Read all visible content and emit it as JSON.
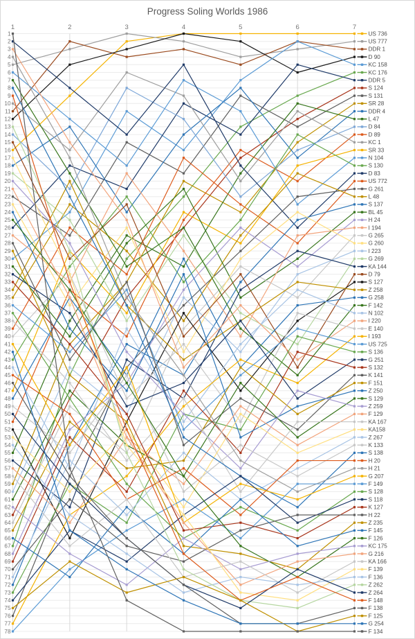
{
  "title": "Progress Soling Worlds 1986",
  "chart_data": {
    "type": "line",
    "variant": "bump-rank-chart",
    "title": "Progress Soling Worlds 1986",
    "x": {
      "ticks": [
        "1",
        "2",
        "3",
        "4",
        "5",
        "6",
        "7"
      ],
      "position": "top"
    },
    "y": {
      "min": 1,
      "max": 78,
      "step": 1,
      "direction": "down",
      "side": "left"
    },
    "grid": {
      "horizontal": true,
      "vertical": true
    },
    "legend_position": "right",
    "colors": {
      "grid_h": "#ececec",
      "grid_v": "#d9d9d9",
      "axis_text": "#757575",
      "legend_text": "#4d4d4d",
      "title_text": "#595959"
    },
    "series": [
      {
        "label": "US 736",
        "color": "#f5b301",
        "ranks": [
          16,
          9,
          2,
          1,
          1,
          1,
          1
        ]
      },
      {
        "label": "US 777",
        "color": "#9e9e9e",
        "ranks": [
          5,
          3,
          1,
          2,
          4,
          3,
          2
        ]
      },
      {
        "label": "DDR 1",
        "color": "#9a4a1e",
        "ranks": [
          11,
          2,
          4,
          3,
          5,
          2,
          3
        ]
      },
      {
        "label": "D 90",
        "color": "#1a1a1a",
        "ranks": [
          12,
          5,
          3,
          1,
          2,
          6,
          4
        ]
      },
      {
        "label": "KC 158",
        "color": "#5b9bd5",
        "ranks": [
          30,
          24,
          11,
          16,
          7,
          2,
          5
        ]
      },
      {
        "label": "KC 176",
        "color": "#68a84e",
        "ranks": [
          67,
          45,
          30,
          22,
          13,
          9,
          6
        ]
      },
      {
        "label": "DDR 5",
        "color": "#1f3a68",
        "ranks": [
          26,
          18,
          21,
          10,
          14,
          5,
          7
        ]
      },
      {
        "label": "S 124",
        "color": "#a8341a",
        "ranks": [
          63,
          48,
          35,
          26,
          17,
          12,
          8
        ]
      },
      {
        "label": "S 131",
        "color": "#5f5f5f",
        "ranks": [
          22,
          27,
          15,
          19,
          9,
          13,
          9
        ]
      },
      {
        "label": "SR 28",
        "color": "#bf9000",
        "ranks": [
          59,
          41,
          33,
          20,
          24,
          15,
          10
        ]
      },
      {
        "label": "DDR 4",
        "color": "#2e75b6",
        "ranks": [
          18,
          13,
          24,
          14,
          8,
          17,
          11
        ]
      },
      {
        "label": "L 47",
        "color": "#38761d",
        "ranks": [
          55,
          38,
          27,
          31,
          19,
          10,
          12
        ]
      },
      {
        "label": "D 84",
        "color": "#7da7d8",
        "ranks": [
          14,
          21,
          8,
          12,
          22,
          16,
          13
        ]
      },
      {
        "label": "D 89",
        "color": "#dd5b1d",
        "ranks": [
          51,
          34,
          40,
          25,
          16,
          20,
          14
        ]
      },
      {
        "label": "KC 1",
        "color": "#9e9e9e",
        "ranks": [
          10,
          16,
          6,
          9,
          20,
          11,
          15
        ]
      },
      {
        "label": "SR 33",
        "color": "#f5b301",
        "ranks": [
          47,
          29,
          37,
          24,
          28,
          18,
          16
        ]
      },
      {
        "label": "N 104",
        "color": "#5b9bd5",
        "ranks": [
          6,
          12,
          18,
          7,
          11,
          23,
          17
        ]
      },
      {
        "label": "S 130",
        "color": "#68a84e",
        "ranks": [
          43,
          31,
          22,
          33,
          25,
          14,
          18
        ]
      },
      {
        "label": "D 83",
        "color": "#1f3a68",
        "ranks": [
          2,
          8,
          14,
          5,
          18,
          26,
          19
        ]
      },
      {
        "label": "US 772",
        "color": "#dd5b1d",
        "ranks": [
          39,
          26,
          32,
          17,
          23,
          28,
          20
        ]
      },
      {
        "label": "G 261",
        "color": "#5f5f5f",
        "ranks": [
          76,
          58,
          44,
          36,
          29,
          22,
          21
        ]
      },
      {
        "label": "L 48",
        "color": "#bf9000",
        "ranks": [
          35,
          23,
          29,
          38,
          27,
          19,
          22
        ]
      },
      {
        "label": "S 137",
        "color": "#2e75b6",
        "ranks": [
          72,
          54,
          41,
          45,
          33,
          25,
          23
        ]
      },
      {
        "label": "BL 45",
        "color": "#38761d",
        "ranks": [
          31,
          40,
          28,
          21,
          35,
          30,
          24
        ]
      },
      {
        "label": "H 24",
        "color": "#a79cd2",
        "ranks": [
          68,
          52,
          46,
          34,
          26,
          31,
          25
        ]
      },
      {
        "label": "I 194",
        "color": "#f2a47c",
        "ranks": [
          27,
          33,
          19,
          29,
          40,
          27,
          26
        ]
      },
      {
        "label": "G 265",
        "color": "#c7c7c7",
        "ranks": [
          64,
          49,
          55,
          39,
          31,
          35,
          27
        ]
      },
      {
        "label": "G 260",
        "color": "#ffdf80",
        "ranks": [
          23,
          36,
          26,
          42,
          30,
          24,
          28
        ]
      },
      {
        "label": "I 223",
        "color": "#a8c4e5",
        "ranks": [
          60,
          44,
          50,
          35,
          42,
          32,
          29
        ]
      },
      {
        "label": "G 269",
        "color": "#b5d6a0",
        "ranks": [
          19,
          25,
          38,
          27,
          37,
          41,
          30
        ]
      },
      {
        "label": "KA 144",
        "color": "#1f3a68",
        "ranks": [
          56,
          62,
          43,
          48,
          34,
          29,
          31
        ]
      },
      {
        "label": "D 79",
        "color": "#9a4a1e",
        "ranks": [
          15,
          30,
          23,
          40,
          32,
          44,
          32
        ]
      },
      {
        "label": "S 127",
        "color": "#1a1a1a",
        "ranks": [
          52,
          66,
          51,
          37,
          47,
          38,
          33
        ]
      },
      {
        "label": "Z 258",
        "color": "#bf9000",
        "ranks": [
          34,
          20,
          36,
          43,
          38,
          33,
          34
        ]
      },
      {
        "label": "G 258",
        "color": "#2e75b6",
        "ranks": [
          48,
          35,
          45,
          30,
          44,
          36,
          35
        ]
      },
      {
        "label": "F 142",
        "color": "#38761d",
        "ranks": [
          7,
          19,
          31,
          26,
          39,
          45,
          36
        ]
      },
      {
        "label": "N 102",
        "color": "#a8c4e5",
        "ranks": [
          44,
          57,
          39,
          51,
          41,
          34,
          37
        ]
      },
      {
        "label": "I 220",
        "color": "#f2a47c",
        "ranks": [
          3,
          15,
          25,
          44,
          36,
          43,
          38
        ]
      },
      {
        "label": "E 140",
        "color": "#c7c7c7",
        "ranks": [
          40,
          32,
          48,
          41,
          51,
          37,
          39
        ]
      },
      {
        "label": "I 193",
        "color": "#f5b301",
        "ranks": [
          77,
          63,
          58,
          49,
          43,
          46,
          40
        ]
      },
      {
        "label": "US 725",
        "color": "#5b9bd5",
        "ranks": [
          36,
          42,
          34,
          52,
          45,
          39,
          41
        ]
      },
      {
        "label": "S 136",
        "color": "#68a84e",
        "ranks": [
          73,
          59,
          64,
          50,
          52,
          40,
          42
        ]
      },
      {
        "label": "G 251",
        "color": "#1f3a68",
        "ranks": [
          32,
          37,
          49,
          46,
          38,
          48,
          43
        ]
      },
      {
        "label": "S 132",
        "color": "#a8341a",
        "ranks": [
          69,
          53,
          60,
          47,
          55,
          42,
          44
        ]
      },
      {
        "label": "K 141",
        "color": "#5f5f5f",
        "ranks": [
          28,
          43,
          33,
          54,
          48,
          52,
          45
        ]
      },
      {
        "label": "F 151",
        "color": "#bf9000",
        "ranks": [
          65,
          51,
          57,
          56,
          44,
          50,
          46
        ]
      },
      {
        "label": "Z 250",
        "color": "#2e75b6",
        "ranks": [
          24,
          39,
          47,
          32,
          53,
          49,
          47
        ]
      },
      {
        "label": "S 129",
        "color": "#38761d",
        "ranks": [
          61,
          47,
          54,
          58,
          46,
          53,
          48
        ]
      },
      {
        "label": "Z 259",
        "color": "#a79cd2",
        "ranks": [
          20,
          28,
          42,
          50,
          57,
          47,
          49
        ]
      },
      {
        "label": "F 129",
        "color": "#f2a47c",
        "ranks": [
          57,
          64,
          53,
          59,
          49,
          54,
          50
        ]
      },
      {
        "label": "KA 167",
        "color": "#c7c7c7",
        "ranks": [
          38,
          46,
          56,
          48,
          60,
          51,
          51
        ]
      },
      {
        "label": "KA158",
        "color": "#ffdf80",
        "ranks": [
          53,
          60,
          52,
          62,
          50,
          55,
          52
        ]
      },
      {
        "label": "Z 267",
        "color": "#a8c4e5",
        "ranks": [
          71,
          56,
          63,
          55,
          61,
          57,
          53
        ]
      },
      {
        "label": "K 133",
        "color": "#c7c7c7",
        "ranks": [
          49,
          55,
          45,
          60,
          54,
          58,
          54
        ]
      },
      {
        "label": "S 138",
        "color": "#2e75b6",
        "ranks": [
          8,
          22,
          36,
          53,
          58,
          62,
          55
        ]
      },
      {
        "label": "H 20",
        "color": "#dd5b1d",
        "ranks": [
          45,
          50,
          61,
          57,
          63,
          56,
          56
        ]
      },
      {
        "label": "H 21",
        "color": "#9e9e9e",
        "ranks": [
          4,
          17,
          35,
          45,
          56,
          60,
          57
        ]
      },
      {
        "label": "G 207",
        "color": "#f5b301",
        "ranks": [
          41,
          54,
          44,
          64,
          59,
          61,
          58
        ]
      },
      {
        "label": "F 149",
        "color": "#5b9bd5",
        "ranks": [
          78,
          70,
          65,
          61,
          66,
          59,
          59
        ]
      },
      {
        "label": "S 128",
        "color": "#68a84e",
        "ranks": [
          37,
          48,
          59,
          66,
          62,
          65,
          60
        ]
      },
      {
        "label": "S 118",
        "color": "#1f3a68",
        "ranks": [
          74,
          65,
          69,
          63,
          58,
          64,
          61
        ]
      },
      {
        "label": "K 127",
        "color": "#a8341a",
        "ranks": [
          33,
          41,
          50,
          65,
          64,
          66,
          62
        ]
      },
      {
        "label": "H 22",
        "color": "#5f5f5f",
        "ranks": [
          70,
          61,
          67,
          69,
          65,
          63,
          63
        ]
      },
      {
        "label": "Z 235",
        "color": "#bf9000",
        "ranks": [
          29,
          45,
          51,
          67,
          68,
          70,
          64
        ]
      },
      {
        "label": "F 145",
        "color": "#2e75b6",
        "ranks": [
          66,
          71,
          62,
          68,
          61,
          67,
          65
        ]
      },
      {
        "label": "F 126",
        "color": "#38761d",
        "ranks": [
          25,
          34,
          46,
          58,
          67,
          71,
          66
        ]
      },
      {
        "label": "KC 175",
        "color": "#a79cd2",
        "ranks": [
          62,
          68,
          72,
          66,
          70,
          68,
          67
        ]
      },
      {
        "label": "G 216",
        "color": "#f2a47c",
        "ranks": [
          21,
          35,
          53,
          64,
          72,
          69,
          68
        ]
      },
      {
        "label": "KA 166",
        "color": "#c7c7c7",
        "ranks": [
          58,
          67,
          61,
          71,
          69,
          73,
          69
        ]
      },
      {
        "label": "F 139",
        "color": "#ffdf80",
        "ranks": [
          17,
          32,
          54,
          63,
          73,
          74,
          70
        ]
      },
      {
        "label": "F 136",
        "color": "#a8c4e5",
        "ranks": [
          54,
          63,
          68,
          73,
          71,
          72,
          71
        ]
      },
      {
        "label": "Z 262",
        "color": "#b5d6a0",
        "ranks": [
          13,
          29,
          55,
          70,
          74,
          75,
          72
        ]
      },
      {
        "label": "Z 264",
        "color": "#1f3a68",
        "ranks": [
          50,
          59,
          66,
          72,
          75,
          70,
          73
        ]
      },
      {
        "label": "F 148",
        "color": "#dd5b1d",
        "ranks": [
          9,
          33,
          52,
          68,
          74,
          71,
          74
        ]
      },
      {
        "label": "F 138",
        "color": "#5f5f5f",
        "ranks": [
          46,
          58,
          66,
          72,
          77,
          77,
          75
        ]
      },
      {
        "label": "F 125",
        "color": "#bf9000",
        "ranks": [
          75,
          69,
          73,
          71,
          74,
          78,
          76
        ]
      },
      {
        "label": "G 254",
        "color": "#2e75b6",
        "ranks": [
          42,
          65,
          70,
          74,
          77,
          77,
          77
        ]
      },
      {
        "label": "F 134",
        "color": "#5f5f5f",
        "ranks": [
          1,
          57,
          74,
          78,
          78,
          78,
          78
        ]
      }
    ]
  }
}
